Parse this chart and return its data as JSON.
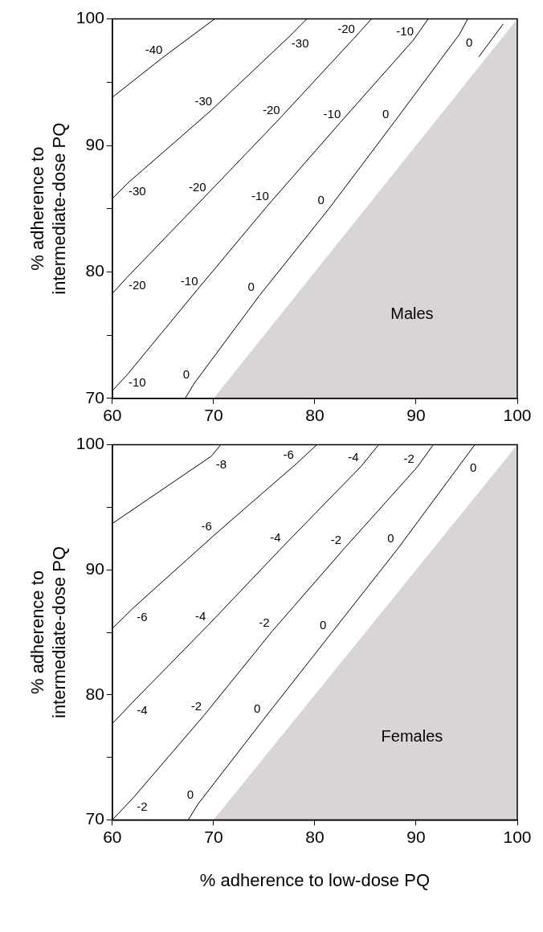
{
  "chart_data": [
    {
      "type": "line",
      "ylabel": "% adherence to\nintermediate-dose PQ",
      "xlim": [
        60,
        100
      ],
      "xticks": [
        60,
        70,
        80,
        90,
        100
      ],
      "ylim": [
        70,
        100
      ],
      "yticks": [
        70,
        {
          "value": 75,
          "label": null
        },
        80,
        {
          "value": 85,
          "label": null
        },
        90,
        {
          "value": 95,
          "label": null
        },
        100
      ],
      "grid": false,
      "legend": false,
      "marker": "none",
      "line_style": "solid",
      "series": [
        {
          "type": "area",
          "color": "#d9d5d5",
          "x": [
            70,
            100
          ],
          "values": [
            70,
            100
          ]
        },
        {
          "name": "-40",
          "color": "#000000",
          "x": [
            60,
            64.9,
            70.1
          ],
          "values": [
            93.8,
            96.9,
            100
          ]
        },
        {
          "name": "-30",
          "color": "#000000",
          "x": [
            60,
            61.5,
            69.8,
            77.6,
            79.2
          ],
          "values": [
            85.8,
            87.0,
            92.8,
            98.7,
            100
          ]
        },
        {
          "name": "-20",
          "color": "#000000",
          "x": [
            60,
            61.5,
            69.2,
            76.5,
            83.9,
            85.6
          ],
          "values": [
            78.3,
            79.6,
            86.0,
            92.1,
            98.5,
            100
          ]
        },
        {
          "name": "-10",
          "color": "#000000",
          "x": [
            60,
            61.5,
            68.4,
            75.4,
            82.5,
            89.7,
            91.2
          ],
          "values": [
            70.6,
            71.9,
            78.6,
            85.3,
            91.8,
            98.3,
            100
          ]
        },
        {
          "name": "0",
          "color": "#000000",
          "x": [
            67.2,
            68.1,
            74.5,
            81.4,
            87.8,
            94.3,
            95.1
          ],
          "values": [
            70,
            71.2,
            78.1,
            85.0,
            91.8,
            98.8,
            100
          ]
        },
        {
          "color": "#000000",
          "x": [
            96.2,
            98.6
          ],
          "values": [
            97.0,
            99.6
          ]
        }
      ],
      "annotations": [
        "Males"
      ]
    },
    {
      "type": "line",
      "xlabel": "% adherence to low-dose PQ",
      "ylabel": "% adherence to\nintermediate-dose PQ",
      "xlim": [
        60,
        100
      ],
      "xticks": [
        60,
        70,
        80,
        90,
        100
      ],
      "ylim": [
        70,
        100
      ],
      "yticks": [
        70,
        {
          "value": 75,
          "label": null
        },
        80,
        {
          "value": 85,
          "label": null
        },
        90,
        {
          "value": 95,
          "label": null
        },
        100
      ],
      "grid": false,
      "legend": false,
      "marker": "none",
      "line_style": "solid",
      "series": [
        {
          "type": "area",
          "color": "#d9d5d5",
          "x": [
            70,
            100
          ],
          "values": [
            70,
            100
          ]
        },
        {
          "name": "-8",
          "color": "#000000",
          "x": [
            60,
            69.8,
            70.7
          ],
          "values": [
            93.7,
            99.1,
            100
          ]
        },
        {
          "name": "-6",
          "color": "#000000",
          "x": [
            60,
            62,
            70.1,
            78.2,
            80.2
          ],
          "values": [
            85.3,
            86.9,
            92.8,
            98.5,
            100
          ]
        },
        {
          "name": "-4",
          "color": "#000000",
          "x": [
            60,
            62,
            69.5,
            76.9,
            84.6,
            86.3
          ],
          "values": [
            77.7,
            79.4,
            85.6,
            91.9,
            98.3,
            100
          ]
        },
        {
          "name": "-2",
          "color": "#000000",
          "x": [
            60,
            62,
            69.1,
            75.8,
            82.9,
            90.1,
            91.7
          ],
          "values": [
            70,
            71.7,
            78.4,
            85.1,
            91.7,
            98.2,
            100
          ]
        },
        {
          "name": "0",
          "color": "#000000",
          "x": [
            67.5,
            68.5,
            75.1,
            81.6,
            88.3,
            94.7,
            95.8
          ],
          "values": [
            70,
            71.3,
            78.2,
            84.9,
            91.8,
            98.8,
            100
          ]
        }
      ],
      "annotations": [
        "Females"
      ]
    }
  ]
}
